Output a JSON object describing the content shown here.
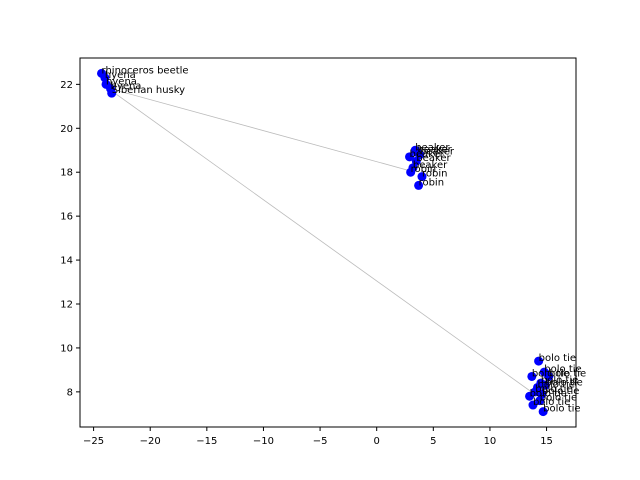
{
  "chart_data": {
    "type": "scatter",
    "title": "",
    "xlabel": "",
    "ylabel": "",
    "xlim": [
      -26.2,
      17.6
    ],
    "ylim": [
      6.4,
      23.2
    ],
    "xticks": [
      -25,
      -20,
      -15,
      -10,
      -5,
      0,
      5,
      10,
      15
    ],
    "yticks": [
      8,
      10,
      12,
      14,
      16,
      18,
      20,
      22
    ],
    "grid": false,
    "marker_color": "#0000ff",
    "line_color": "#bbbbbb",
    "points": [
      {
        "x": -24.3,
        "y": 22.5,
        "label": "rhinoceros beetle"
      },
      {
        "x": -24.0,
        "y": 22.3,
        "label": "hyena"
      },
      {
        "x": -23.9,
        "y": 22.0,
        "label": "hyena"
      },
      {
        "x": -23.5,
        "y": 21.8,
        "label": "hyena"
      },
      {
        "x": -23.4,
        "y": 21.6,
        "label": "Siberian husky"
      },
      {
        "x": 3.4,
        "y": 19.0,
        "label": "beaker"
      },
      {
        "x": 3.6,
        "y": 18.9,
        "label": "beaker"
      },
      {
        "x": 3.8,
        "y": 18.8,
        "label": "beaker"
      },
      {
        "x": 2.9,
        "y": 18.7,
        "label": "beaker"
      },
      {
        "x": 3.5,
        "y": 18.5,
        "label": "beaker"
      },
      {
        "x": 3.2,
        "y": 18.2,
        "label": "beaker"
      },
      {
        "x": 3.0,
        "y": 18.0,
        "label": "robin"
      },
      {
        "x": 4.0,
        "y": 17.8,
        "label": "robin"
      },
      {
        "x": 3.7,
        "y": 17.4,
        "label": "robin"
      },
      {
        "x": 14.3,
        "y": 9.4,
        "label": "bolo tie"
      },
      {
        "x": 14.8,
        "y": 8.9,
        "label": "bolo tie"
      },
      {
        "x": 15.2,
        "y": 8.7,
        "label": "bolo tie"
      },
      {
        "x": 13.7,
        "y": 8.7,
        "label": "bolo tie"
      },
      {
        "x": 14.5,
        "y": 8.4,
        "label": "bolo tie"
      },
      {
        "x": 14.9,
        "y": 8.3,
        "label": "bolo tie"
      },
      {
        "x": 14.2,
        "y": 8.2,
        "label": "bolo tie"
      },
      {
        "x": 14.0,
        "y": 8.0,
        "label": "bolo tie"
      },
      {
        "x": 14.6,
        "y": 7.9,
        "label": "bolo tie"
      },
      {
        "x": 13.5,
        "y": 7.8,
        "label": "bolo tie"
      },
      {
        "x": 14.4,
        "y": 7.6,
        "label": "bolo tie"
      },
      {
        "x": 13.8,
        "y": 7.4,
        "label": "bolo tie"
      },
      {
        "x": 14.7,
        "y": 7.1,
        "label": "bolo tie"
      }
    ],
    "connector": [
      {
        "x": -23.5,
        "y": 21.8
      },
      {
        "x": 3.4,
        "y": 18.0
      },
      {
        "x": -23.4,
        "y": 21.7
      },
      {
        "x": 14.2,
        "y": 7.8
      }
    ]
  }
}
